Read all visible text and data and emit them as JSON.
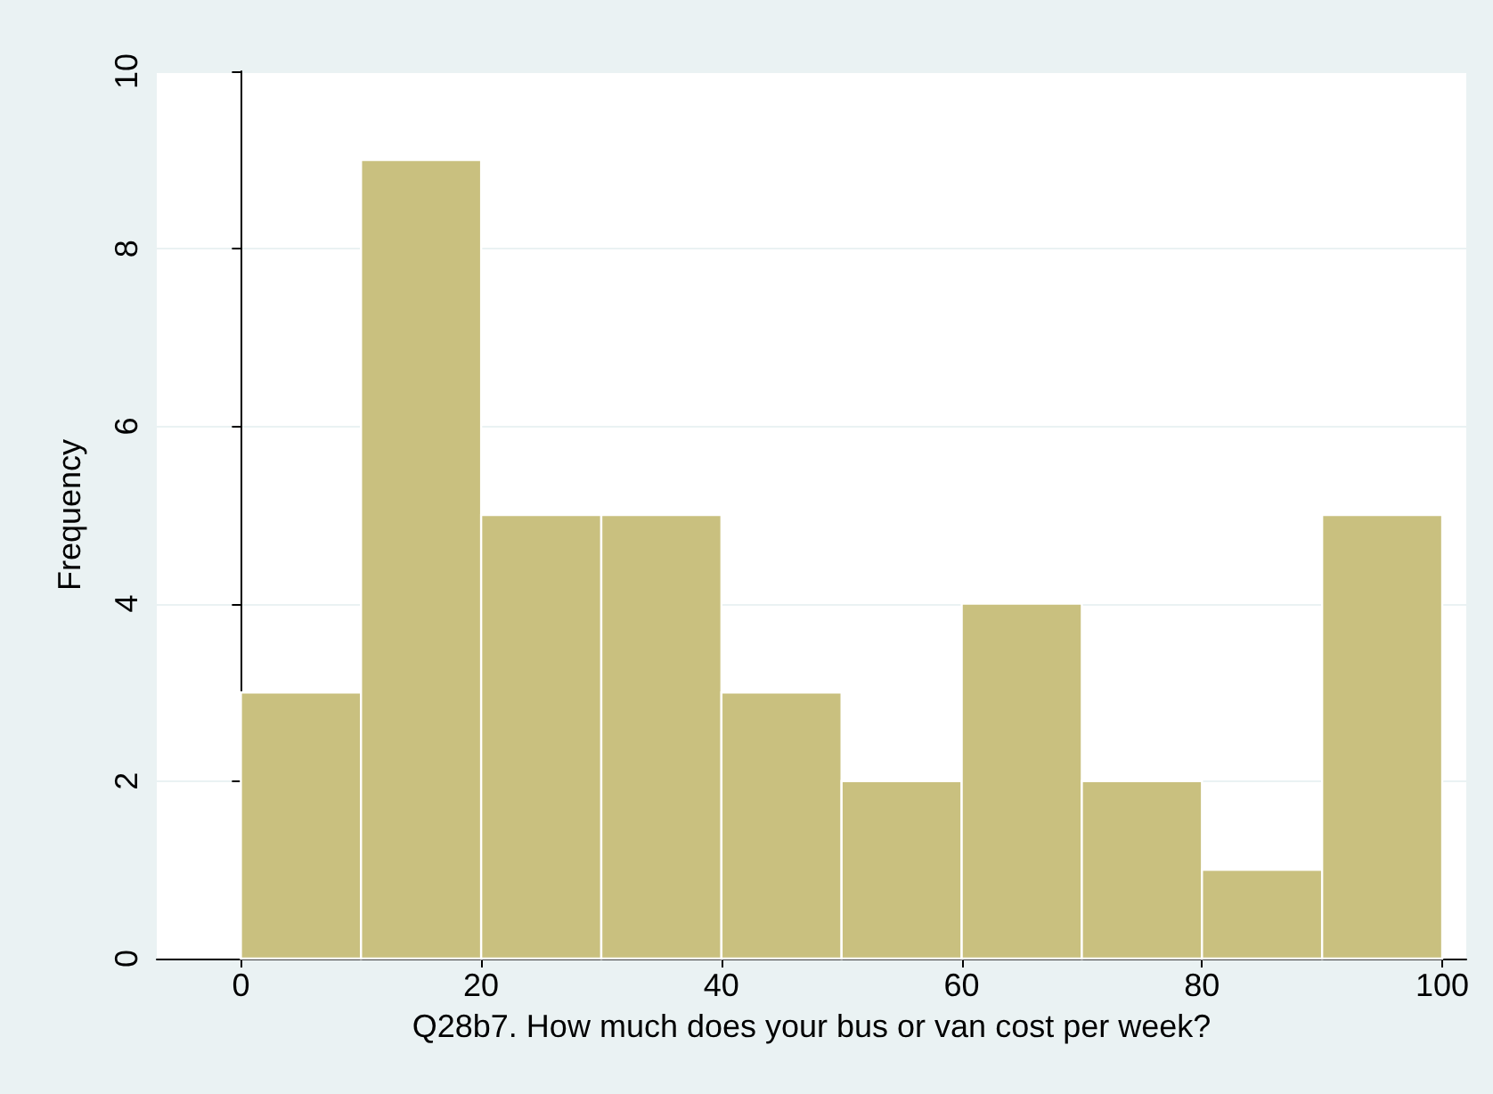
{
  "chart_data": {
    "type": "histogram",
    "xlabel": "Q28b7. How much does your bus or van cost per week?",
    "ylabel": "Frequency",
    "bins": [
      0,
      10,
      20,
      30,
      40,
      50,
      60,
      70,
      80,
      90,
      100
    ],
    "values": [
      3,
      9,
      5,
      5,
      3,
      2,
      4,
      2,
      1,
      5
    ],
    "color": "#c9c07f",
    "xlim": [
      -7,
      102
    ],
    "xticks": [
      0,
      20,
      40,
      60,
      80,
      100
    ],
    "ylim": [
      0,
      10
    ],
    "yticks": [
      0,
      2,
      4,
      6,
      8,
      10
    ],
    "grid": "y"
  }
}
